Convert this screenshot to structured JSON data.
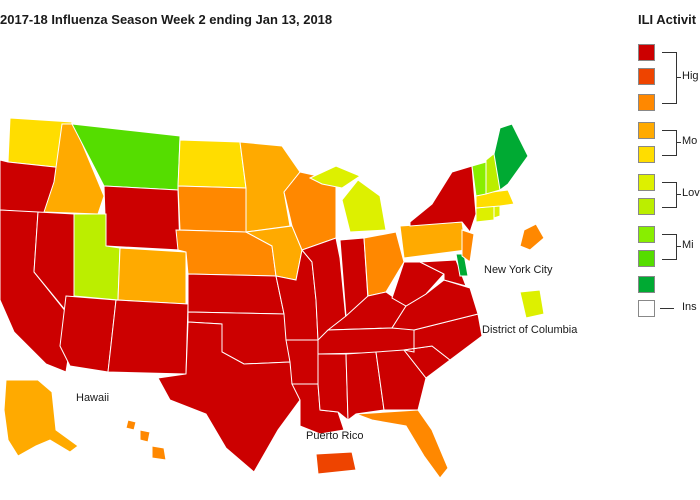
{
  "title": "2017-18 Influenza Season Week 2 ending Jan 13, 2018",
  "legend": {
    "title": "ILI Activit",
    "levels": [
      {
        "level": 10,
        "color": "#cc0000"
      },
      {
        "level": 9,
        "color": "#ee4400"
      },
      {
        "level": 8,
        "color": "#ff8800"
      },
      {
        "level": 7,
        "color": "#ffaa00"
      },
      {
        "level": 6,
        "color": "#ffdd00"
      },
      {
        "level": 5,
        "color": "#ddf000"
      },
      {
        "level": 4,
        "color": "#bbee00"
      },
      {
        "level": 3,
        "color": "#88ee00"
      },
      {
        "level": 2,
        "color": "#55dd00"
      },
      {
        "level": 1,
        "color": "#00aa33"
      }
    ],
    "groups": [
      "Hig",
      "Mo",
      "Lov",
      "Mi"
    ],
    "insufficient": {
      "label": "Ins",
      "color": "#ffffff"
    }
  },
  "map_labels": {
    "hawaii": "Hawaii",
    "puerto_rico": "Puerto Rico",
    "new_york_city": "New York City",
    "dc": "District of Columbia"
  },
  "states": {
    "WA": 6,
    "OR": 10,
    "CA": 10,
    "ID": 7,
    "NV": 10,
    "MT": 2,
    "WY": 10,
    "UT": 4,
    "AZ": 10,
    "CO": 7,
    "NM": 10,
    "ND": 6,
    "SD": 8,
    "NE": 8,
    "KS": 10,
    "OK": 10,
    "TX": 10,
    "MN": 7,
    "IA": 7,
    "MO": 10,
    "AR": 10,
    "LA": 10,
    "WI": 8,
    "IL": 10,
    "MI": 5,
    "IN": 10,
    "OH": 8,
    "KY": 10,
    "TN": 10,
    "MS": 10,
    "AL": 10,
    "GA": 10,
    "FL": 8,
    "SC": 10,
    "NC": 10,
    "VA": 10,
    "WV": 10,
    "PA": 7,
    "NY": 10,
    "VT": 3,
    "NH": 4,
    "ME": 1,
    "MA": 6,
    "CT": 5,
    "RI": 5,
    "NJ": 8,
    "DE": 1,
    "MD": 10,
    "AK": 7,
    "HI": 8,
    "PR": 9,
    "NYC": 8,
    "DC": 5
  }
}
